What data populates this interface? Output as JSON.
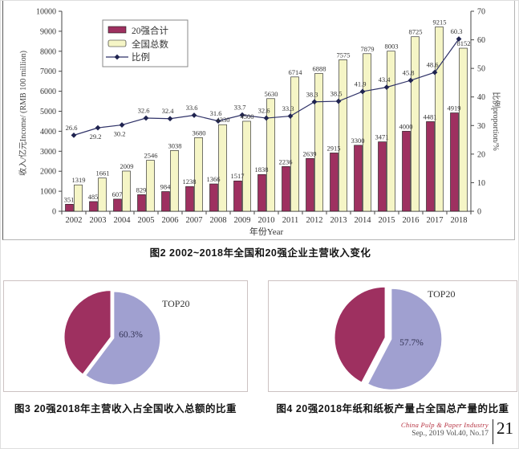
{
  "figure2": {
    "caption": "图2  2002~2018年全国和20强企业主营收入变化"
  },
  "figure3": {
    "caption": "图3  20强2018年主营收入占全国收入总额的比重"
  },
  "figure4": {
    "caption": "图4  20强2018年纸和纸板产量占全国总产量的比重"
  },
  "footer": {
    "journal_name": "China Pulp & Paper Industry",
    "issue_info": "Sep., 2019  Vol.40, No.17",
    "page_number": "21"
  },
  "chart_data": [
    {
      "id": "figure2",
      "type": "bar+line",
      "title": "",
      "xlabel": "年份Year",
      "ylabel_left": "收入/亿元Income/ (RMB 100 million)",
      "ylabel_right": "比例proportion/%",
      "ylim_left": [
        0,
        10000
      ],
      "ytick_left": 1000,
      "ylim_right": [
        0,
        70
      ],
      "ytick_right": 10,
      "grid": false,
      "legend_position": "top-left-inside",
      "categories": [
        "2002",
        "2003",
        "2004",
        "2005",
        "2006",
        "2007",
        "2008",
        "2009",
        "2010",
        "2011",
        "2012",
        "2013",
        "2014",
        "2015",
        "2016",
        "2017",
        "2018"
      ],
      "series": [
        {
          "name": "20强合计",
          "type": "bar",
          "axis": "left",
          "color": "#9e3060",
          "values": [
            351,
            485,
            607,
            829,
            984,
            1238,
            1366,
            1517,
            1838,
            2236,
            2639,
            2915,
            3300,
            3471,
            4000,
            4481,
            4919
          ]
        },
        {
          "name": "全国总数",
          "type": "bar",
          "axis": "left",
          "color": "#f5f5c6",
          "values": [
            1319,
            1661,
            2009,
            2546,
            3038,
            3680,
            4330,
            4500,
            5630,
            6714,
            6888,
            7575,
            7879,
            8003,
            8725,
            9215,
            8152
          ]
        },
        {
          "name": "比例",
          "type": "line",
          "axis": "right",
          "color": "#2f3268",
          "marker": "diamond",
          "values": [
            26.6,
            29.2,
            30.2,
            32.6,
            32.4,
            33.6,
            31.6,
            33.7,
            32.6,
            33.3,
            38.3,
            38.5,
            41.9,
            43.4,
            45.8,
            48.6,
            60.3
          ]
        }
      ],
      "value_labels": true,
      "label_below_indices": [
        1,
        2
      ]
    },
    {
      "id": "figure3",
      "type": "pie",
      "start_angle_deg": 0,
      "slices": [
        {
          "label": "TOP20",
          "value": 60.3,
          "display": "60.3%",
          "color": "#a0a0d0"
        },
        {
          "label": "",
          "value": 39.7,
          "display": "",
          "color": "#9e3060"
        }
      ]
    },
    {
      "id": "figure4",
      "type": "pie",
      "start_angle_deg": 0,
      "slices": [
        {
          "label": "TOP20",
          "value": 57.7,
          "display": "57.7%",
          "color": "#a0a0d0"
        },
        {
          "label": "",
          "value": 42.3,
          "display": "",
          "color": "#9e3060"
        }
      ]
    }
  ]
}
